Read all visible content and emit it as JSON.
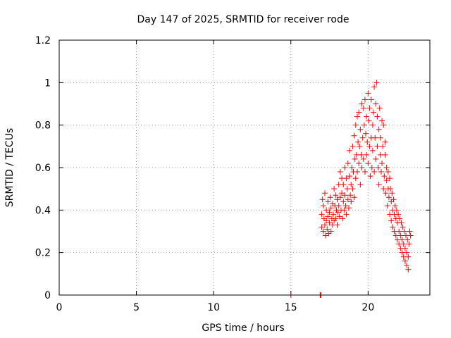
{
  "chart_data": {
    "type": "scatter",
    "title": "Day 147 of 2025, SRMTID for receiver rode",
    "xlabel": "GPS time / hours",
    "ylabel": "SRMTID / TECUs",
    "xlim": [
      0,
      24
    ],
    "ylim": [
      0,
      1.2
    ],
    "grid": true,
    "x_ticks": [
      0,
      5,
      10,
      15,
      20
    ],
    "x_tick_labels": [
      "0",
      "5",
      "10",
      "15",
      "20"
    ],
    "y_ticks": [
      0,
      0.2,
      0.4,
      0.6,
      0.8,
      1.0,
      1.2
    ],
    "y_tick_labels": [
      "0",
      "0.2",
      "0.4",
      "0.6",
      "0.8",
      "1",
      "1.2"
    ],
    "marker": "+",
    "marker_color": "#ff0000",
    "series": [
      {
        "name": "SRMTID",
        "x": [
          15.0,
          16.9,
          16.95,
          17.0,
          17.0,
          17.05,
          17.1,
          17.1,
          17.15,
          17.2,
          17.2,
          17.25,
          17.3,
          17.3,
          17.35,
          17.4,
          17.4,
          17.45,
          17.5,
          17.5,
          17.55,
          17.6,
          17.6,
          17.65,
          17.7,
          17.7,
          17.75,
          17.8,
          17.8,
          17.85,
          17.9,
          17.9,
          17.95,
          18.0,
          18.0,
          18.05,
          18.1,
          18.1,
          18.15,
          18.2,
          18.2,
          18.25,
          18.3,
          18.3,
          18.35,
          18.4,
          18.4,
          18.45,
          18.5,
          18.5,
          18.55,
          18.6,
          18.6,
          18.65,
          18.7,
          18.7,
          18.75,
          18.8,
          18.8,
          18.85,
          18.9,
          18.9,
          18.95,
          19.0,
          19.0,
          19.05,
          19.1,
          19.1,
          19.15,
          19.2,
          19.2,
          19.25,
          19.3,
          19.3,
          19.35,
          19.4,
          19.4,
          19.45,
          19.5,
          19.5,
          19.55,
          19.6,
          19.6,
          19.65,
          19.7,
          19.7,
          19.75,
          19.8,
          19.8,
          19.85,
          19.9,
          19.9,
          19.95,
          20.0,
          20.0,
          20.05,
          20.1,
          20.1,
          20.15,
          20.2,
          20.2,
          20.25,
          20.3,
          20.3,
          20.35,
          20.4,
          20.4,
          20.45,
          20.5,
          20.5,
          20.55,
          20.6,
          20.6,
          20.65,
          20.7,
          20.7,
          20.75,
          20.8,
          20.8,
          20.85,
          20.9,
          20.9,
          20.95,
          21.0,
          21.0,
          21.05,
          21.1,
          21.1,
          21.15,
          21.2,
          21.2,
          21.25,
          21.3,
          21.3,
          21.35,
          21.4,
          21.4,
          21.45,
          21.5,
          21.5,
          21.55,
          21.6,
          21.6,
          21.65,
          21.7,
          21.7,
          21.75,
          21.8,
          21.8,
          21.85,
          21.9,
          21.9,
          21.95,
          22.0,
          22.0,
          22.05,
          22.1,
          22.1,
          22.15,
          22.2,
          22.2,
          22.25,
          22.3,
          22.3,
          22.35,
          22.4,
          22.4,
          22.45,
          22.5,
          22.5,
          22.55,
          22.6,
          22.6,
          22.65,
          22.7,
          22.75
        ],
        "y": [
          0.0,
          0.0,
          0.0,
          0.32,
          0.38,
          0.45,
          0.3,
          0.42,
          0.36,
          0.48,
          0.33,
          0.28,
          0.4,
          0.35,
          0.31,
          0.44,
          0.37,
          0.29,
          0.39,
          0.34,
          0.46,
          0.3,
          0.41,
          0.36,
          0.43,
          0.33,
          0.38,
          0.5,
          0.35,
          0.42,
          0.47,
          0.36,
          0.4,
          0.45,
          0.33,
          0.39,
          0.52,
          0.42,
          0.37,
          0.58,
          0.46,
          0.4,
          0.55,
          0.48,
          0.36,
          0.52,
          0.44,
          0.4,
          0.6,
          0.47,
          0.42,
          0.55,
          0.38,
          0.5,
          0.62,
          0.45,
          0.41,
          0.56,
          0.68,
          0.47,
          0.52,
          0.44,
          0.6,
          0.7,
          0.5,
          0.58,
          0.75,
          0.46,
          0.64,
          0.8,
          0.55,
          0.66,
          0.84,
          0.58,
          0.72,
          0.86,
          0.62,
          0.7,
          0.52,
          0.78,
          0.66,
          0.9,
          0.6,
          0.74,
          0.88,
          0.64,
          0.8,
          0.92,
          0.58,
          0.76,
          0.84,
          0.66,
          0.72,
          0.95,
          0.62,
          0.82,
          0.7,
          0.88,
          0.56,
          0.74,
          0.92,
          0.6,
          0.8,
          0.68,
          0.86,
          0.98,
          0.58,
          0.74,
          0.9,
          0.64,
          1.0,
          0.7,
          0.84,
          0.6,
          0.78,
          0.52,
          0.88,
          0.66,
          0.74,
          0.58,
          0.82,
          0.62,
          0.7,
          0.5,
          0.8,
          0.56,
          0.66,
          0.72,
          0.48,
          0.6,
          0.54,
          0.42,
          0.58,
          0.5,
          0.46,
          0.55,
          0.38,
          0.5,
          0.44,
          0.35,
          0.48,
          0.4,
          0.32,
          0.45,
          0.38,
          0.3,
          0.42,
          0.36,
          0.28,
          0.4,
          0.34,
          0.26,
          0.38,
          0.3,
          0.24,
          0.36,
          0.28,
          0.22,
          0.34,
          0.26,
          0.2,
          0.32,
          0.24,
          0.18,
          0.3,
          0.22,
          0.16,
          0.28,
          0.2,
          0.14,
          0.26,
          0.18,
          0.12,
          0.24,
          0.3,
          0.28
        ]
      }
    ]
  }
}
